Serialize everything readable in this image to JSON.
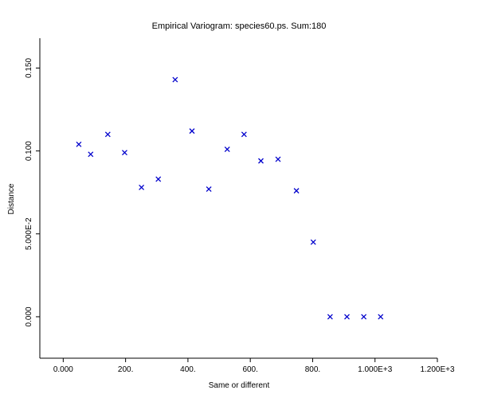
{
  "chart_data": {
    "type": "scatter",
    "title": "Empirical Variogram: species60.ps. Sum:180",
    "xlabel": "Same or different",
    "ylabel": "Distance",
    "xlim": [
      -75,
      1200
    ],
    "ylim": [
      -0.025,
      0.168
    ],
    "x_ticks": [
      {
        "value": 0,
        "label": "0.000"
      },
      {
        "value": 200,
        "label": "200."
      },
      {
        "value": 400,
        "label": "400."
      },
      {
        "value": 600,
        "label": "600."
      },
      {
        "value": 800,
        "label": "800."
      },
      {
        "value": 1000,
        "label": "1.000E+3"
      },
      {
        "value": 1200,
        "label": "1.200E+3"
      }
    ],
    "y_ticks": [
      {
        "value": 0,
        "label": "0.000"
      },
      {
        "value": 0.05,
        "label": "5.000E-2"
      },
      {
        "value": 0.1,
        "label": "0.100"
      },
      {
        "value": 0.15,
        "label": "0.150"
      }
    ],
    "marker": "x",
    "color": "#0000cc",
    "grid": false,
    "points": [
      {
        "x": 50,
        "y": 0.104
      },
      {
        "x": 88,
        "y": 0.098
      },
      {
        "x": 143,
        "y": 0.11
      },
      {
        "x": 197,
        "y": 0.099
      },
      {
        "x": 251,
        "y": 0.078
      },
      {
        "x": 305,
        "y": 0.083
      },
      {
        "x": 359,
        "y": 0.143
      },
      {
        "x": 413,
        "y": 0.112
      },
      {
        "x": 467,
        "y": 0.077
      },
      {
        "x": 526,
        "y": 0.101
      },
      {
        "x": 580,
        "y": 0.11
      },
      {
        "x": 634,
        "y": 0.094
      },
      {
        "x": 689,
        "y": 0.095
      },
      {
        "x": 748,
        "y": 0.076
      },
      {
        "x": 802,
        "y": 0.045
      },
      {
        "x": 856,
        "y": 0.0
      },
      {
        "x": 910,
        "y": 0.0
      },
      {
        "x": 964,
        "y": 0.0
      },
      {
        "x": 1018,
        "y": 0.0
      }
    ]
  }
}
